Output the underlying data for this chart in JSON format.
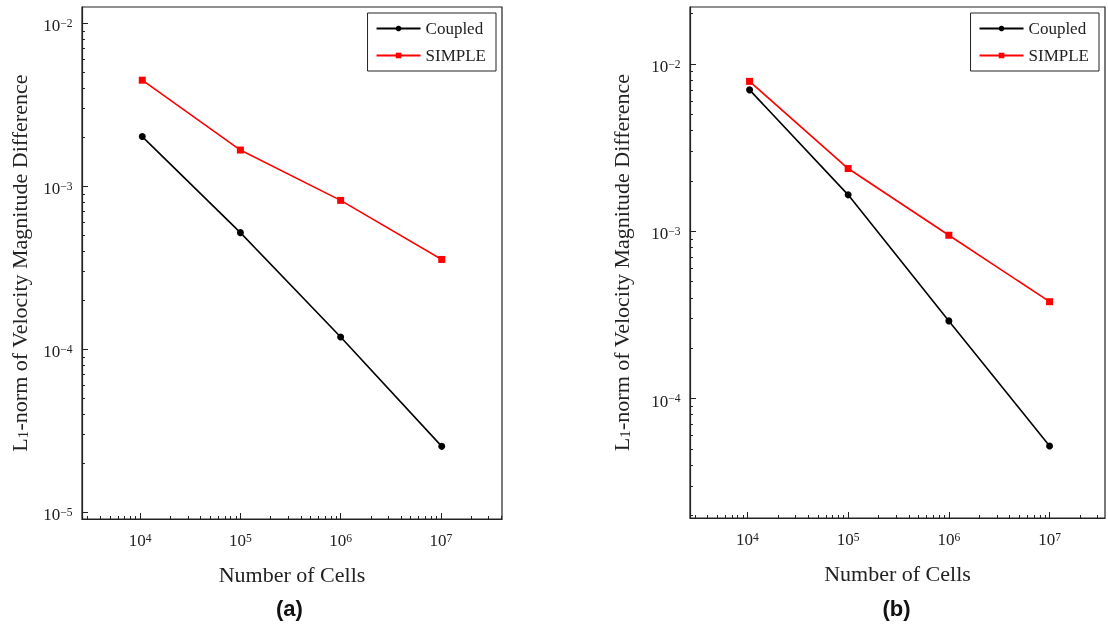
{
  "chart_data": [
    {
      "type": "line",
      "title": "(a)",
      "xlabel": "Number of Cells",
      "ylabel": "L$_{1}$-norm of Velocity Magnitude Difference",
      "log": "xy",
      "legend": "top right",
      "grid": false,
      "xlim": [
        2630,
        40700000
      ],
      "xticks": [
        {
          "value": 10000,
          "label": "10$^{4}$"
        },
        {
          "value": 100000,
          "label": "10$^{5}$"
        },
        {
          "value": 1000000,
          "label": "10$^{6}$"
        },
        {
          "value": 10000000,
          "label": "10$^{7}$"
        }
      ],
      "ylim": [
        9.1e-06,
        0.0126
      ],
      "yticks": [
        {
          "value": 1e-05,
          "label": "10$^{−5}$"
        },
        {
          "value": 0.0001,
          "label": "10$^{−4}$"
        },
        {
          "value": 0.001,
          "label": "10$^{−3}$"
        },
        {
          "value": 0.01,
          "label": "10$^{−2}$"
        }
      ],
      "x": [
        10500,
        100000,
        1000000,
        10200000
      ],
      "series": [
        {
          "name": "Coupled",
          "color": "#000000",
          "marker": "circle",
          "values": [
            0.00202,
            0.00052,
            0.000119,
            2.54e-05
          ]
        },
        {
          "name": "SIMPLE",
          "color": "#ff0000",
          "marker": "square",
          "values": [
            0.00448,
            0.00167,
            0.00082,
            0.000356
          ]
        }
      ]
    },
    {
      "type": "line",
      "title": "(b)",
      "xlabel": "Number of Cells",
      "ylabel": "L$_{1}$-norm of Velocity Magnitude Difference",
      "log": "xy",
      "legend": "top right",
      "grid": false,
      "xlim": [
        2690,
        35500000
      ],
      "xticks": [
        {
          "value": 10000,
          "label": "10$^{4}$"
        },
        {
          "value": 100000,
          "label": "10$^{5}$"
        },
        {
          "value": 1000000,
          "label": "10$^{6}$"
        },
        {
          "value": 10000000,
          "label": "10$^{7}$"
        }
      ],
      "ylim": [
        1.93e-05,
        0.0219
      ],
      "yticks": [
        {
          "value": 0.0001,
          "label": "10$^{−4}$"
        },
        {
          "value": 0.001,
          "label": "10$^{−3}$"
        },
        {
          "value": 0.01,
          "label": "10$^{−2}$"
        }
      ],
      "x": [
        10500,
        100000,
        1000000,
        10000000
      ],
      "series": [
        {
          "name": "Coupled",
          "color": "#000000",
          "marker": "circle",
          "values": [
            0.007,
            0.00165,
            0.000291,
            5.2e-05
          ]
        },
        {
          "name": "SIMPLE",
          "color": "#ff0000",
          "marker": "square",
          "values": [
            0.00787,
            0.00237,
            0.000946,
            0.000379
          ]
        }
      ]
    }
  ]
}
